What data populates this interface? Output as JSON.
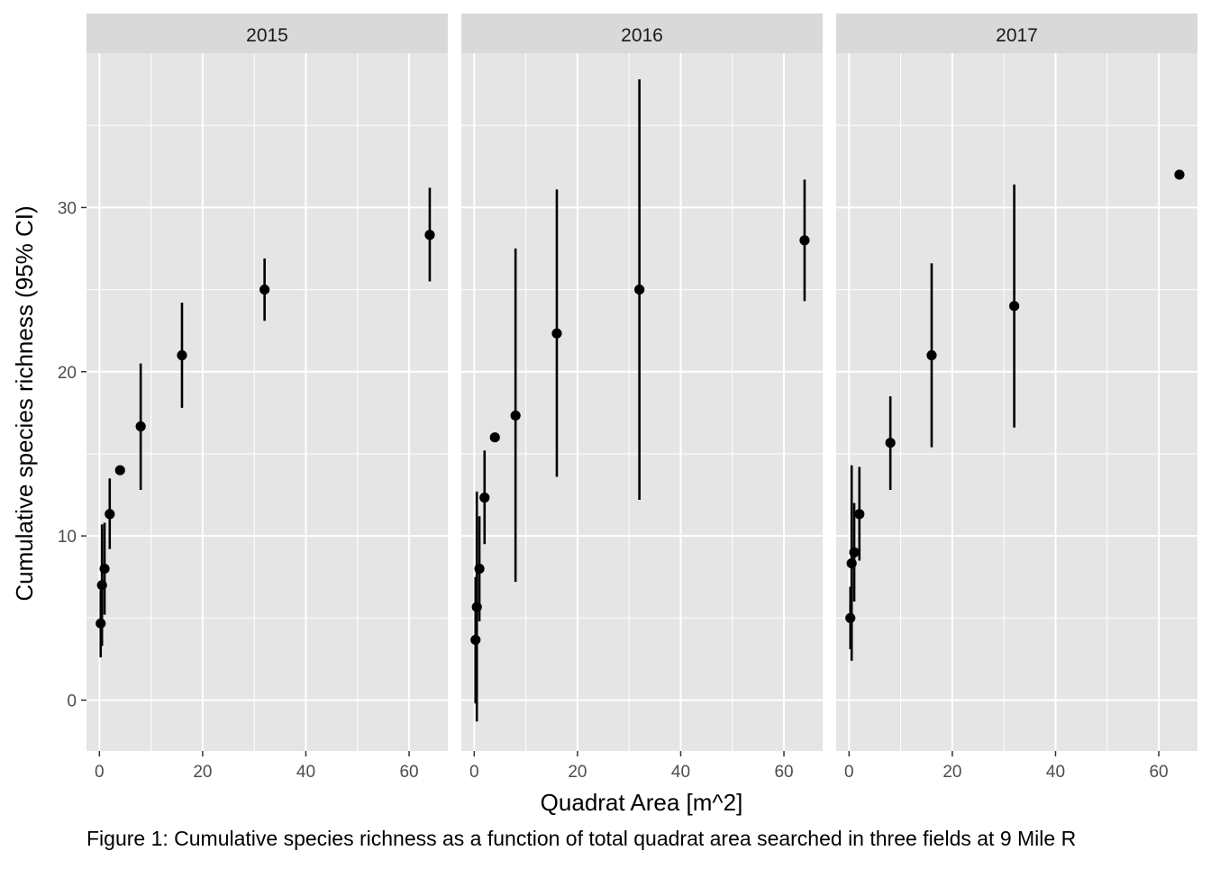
{
  "chart_data": {
    "type": "scatter",
    "subtype": "point-with-errorbars, faceted",
    "xlabel": "Quadrat Area [m^2]",
    "ylabel": "Cumulative species richness (95% CI)",
    "caption": "Figure 1: Cumulative species richness as a function of total quadrat area searched in three fields at 9 Mile R",
    "xlim": [
      -2.5,
      67.5
    ],
    "ylim": [
      -3.1,
      39.4
    ],
    "x_ticks": [
      0,
      20,
      40,
      60
    ],
    "x_tick_labels": [
      "0",
      "20",
      "40",
      "60"
    ],
    "y_ticks": [
      0,
      10,
      20,
      30
    ],
    "y_tick_labels": [
      "0",
      "10",
      "20",
      "30"
    ],
    "grid": true,
    "legend": "none",
    "colors": {
      "panel_background": "#e5e5e5",
      "grid": "#ffffff",
      "strip_background": "#d9d9d9",
      "points": "#000000"
    },
    "panels": [
      {
        "label": "2015",
        "points": [
          {
            "x": 0.25,
            "y": 4.67,
            "low": 2.6,
            "high": 6.7
          },
          {
            "x": 0.5,
            "y": 7.0,
            "low": 3.3,
            "high": 10.7
          },
          {
            "x": 1,
            "y": 8.0,
            "low": 5.2,
            "high": 10.8
          },
          {
            "x": 2,
            "y": 11.33,
            "low": 9.2,
            "high": 13.5
          },
          {
            "x": 4,
            "y": 14.0,
            "low": 14.0,
            "high": 14.0
          },
          {
            "x": 8,
            "y": 16.67,
            "low": 12.8,
            "high": 20.5
          },
          {
            "x": 16,
            "y": 21.0,
            "low": 17.8,
            "high": 24.2
          },
          {
            "x": 32,
            "y": 25.0,
            "low": 23.1,
            "high": 26.9
          },
          {
            "x": 64,
            "y": 28.33,
            "low": 25.5,
            "high": 31.2
          }
        ]
      },
      {
        "label": "2016",
        "points": [
          {
            "x": 0.25,
            "y": 3.67,
            "low": -0.2,
            "high": 7.5
          },
          {
            "x": 0.5,
            "y": 5.67,
            "low": -1.3,
            "high": 12.7
          },
          {
            "x": 1,
            "y": 8.0,
            "low": 4.8,
            "high": 11.2
          },
          {
            "x": 2,
            "y": 12.33,
            "low": 9.5,
            "high": 15.2
          },
          {
            "x": 4,
            "y": 16.0,
            "low": 16.0,
            "high": 16.0
          },
          {
            "x": 8,
            "y": 17.33,
            "low": 7.2,
            "high": 27.5
          },
          {
            "x": 16,
            "y": 22.33,
            "low": 13.6,
            "high": 31.1
          },
          {
            "x": 32,
            "y": 25.0,
            "low": 12.2,
            "high": 37.8
          },
          {
            "x": 64,
            "y": 28.0,
            "low": 24.3,
            "high": 31.7
          }
        ]
      },
      {
        "label": "2017",
        "points": [
          {
            "x": 0.25,
            "y": 5.0,
            "low": 3.1,
            "high": 6.9
          },
          {
            "x": 0.5,
            "y": 8.33,
            "low": 2.4,
            "high": 14.3
          },
          {
            "x": 1,
            "y": 9.0,
            "low": 6.0,
            "high": 12.0
          },
          {
            "x": 2,
            "y": 11.33,
            "low": 8.5,
            "high": 14.2
          },
          {
            "x": 8,
            "y": 15.67,
            "low": 12.8,
            "high": 18.5
          },
          {
            "x": 16,
            "y": 21.0,
            "low": 15.4,
            "high": 26.6
          },
          {
            "x": 32,
            "y": 24.0,
            "low": 16.6,
            "high": 31.4
          },
          {
            "x": 64,
            "y": 32.0,
            "low": 32.0,
            "high": 32.0
          }
        ]
      }
    ]
  }
}
